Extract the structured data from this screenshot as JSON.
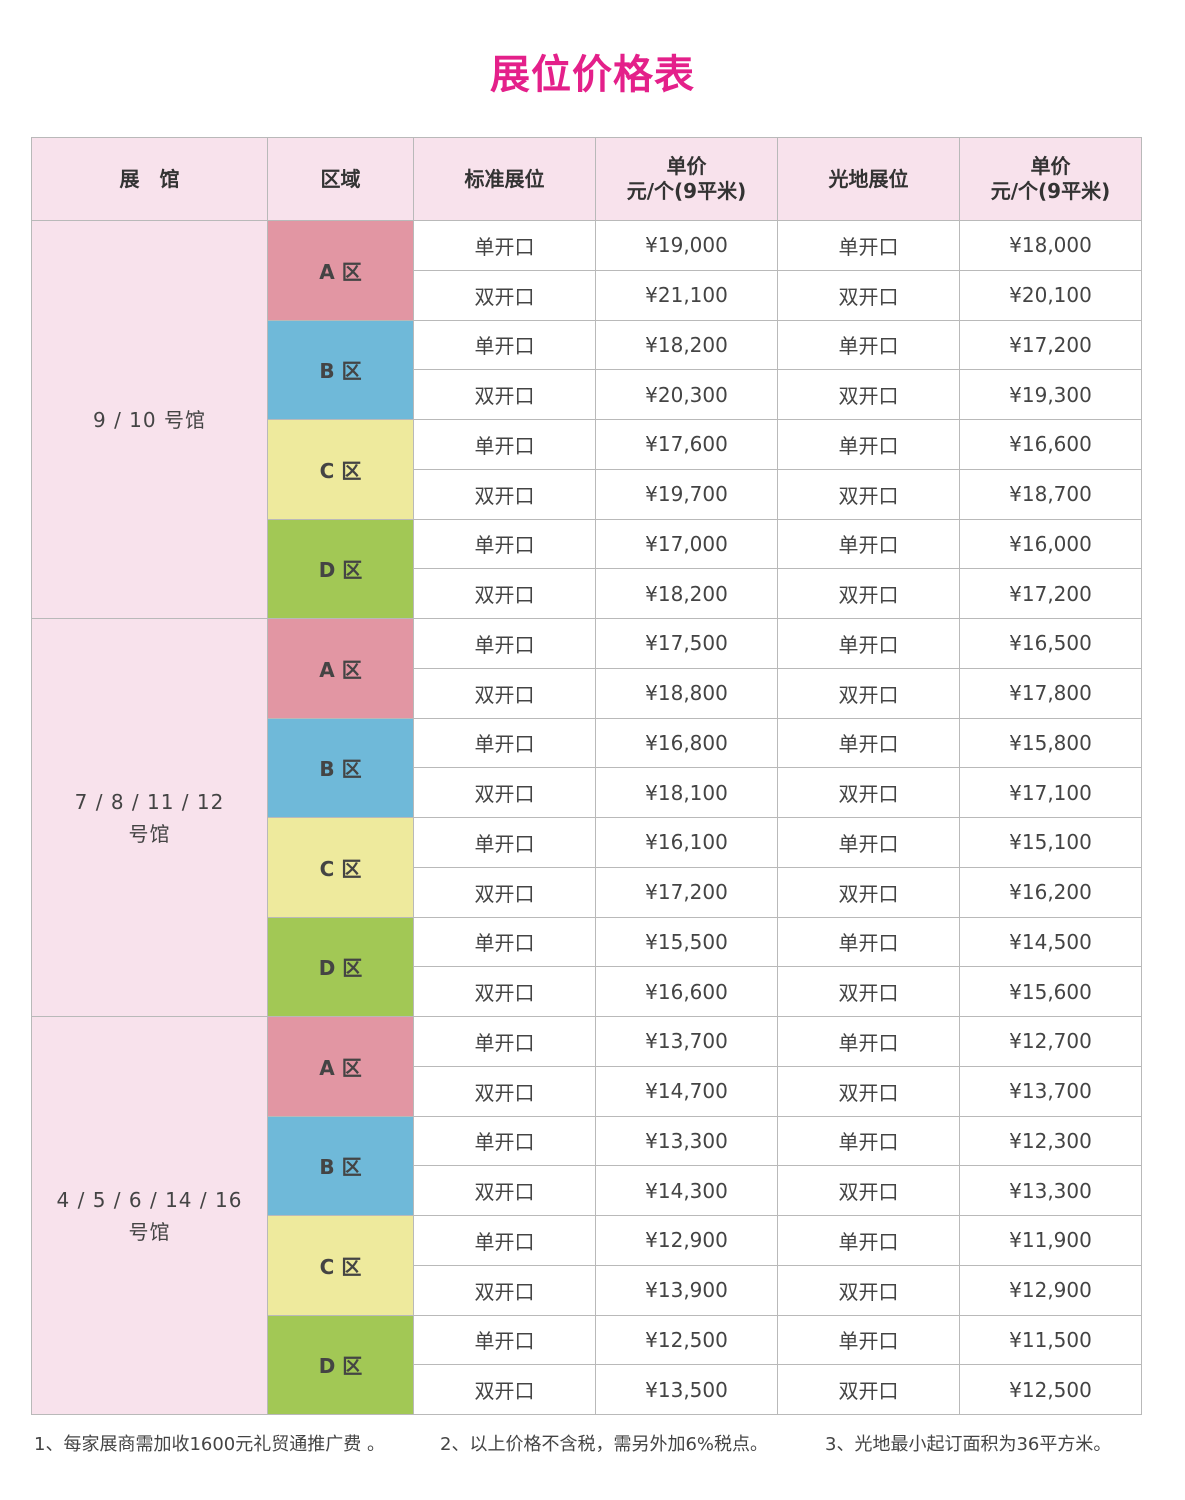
{
  "title": "展位价格表",
  "colors": {
    "title": "#e4208a",
    "header_bg": "#f8e2ec",
    "zone_a": "#e296a3",
    "zone_b": "#6fb9d9",
    "zone_c": "#eeea9d",
    "zone_d": "#a2c855"
  },
  "headers": [
    "展　馆",
    "区域",
    "标准展位",
    "单价\n元/个(9平米)",
    "光地展位",
    "单价\n元/个(9平米)"
  ],
  "halls": [
    {
      "name": "9 / 10  号馆",
      "zones": [
        {
          "label": "A 区",
          "rows": [
            {
              "std": "单开口",
              "std_price": "¥19,000",
              "raw": "单开口",
              "raw_price": "¥18,000"
            },
            {
              "std": "双开口",
              "std_price": "¥21,100",
              "raw": "双开口",
              "raw_price": "¥20,100"
            }
          ]
        },
        {
          "label": "B 区",
          "rows": [
            {
              "std": "单开口",
              "std_price": "¥18,200",
              "raw": "单开口",
              "raw_price": "¥17,200"
            },
            {
              "std": "双开口",
              "std_price": "¥20,300",
              "raw": "双开口",
              "raw_price": "¥19,300"
            }
          ]
        },
        {
          "label": "C 区",
          "rows": [
            {
              "std": "单开口",
              "std_price": "¥17,600",
              "raw": "单开口",
              "raw_price": "¥16,600"
            },
            {
              "std": "双开口",
              "std_price": "¥19,700",
              "raw": "双开口",
              "raw_price": "¥18,700"
            }
          ]
        },
        {
          "label": "D 区",
          "rows": [
            {
              "std": "单开口",
              "std_price": "¥17,000",
              "raw": "单开口",
              "raw_price": "¥16,000"
            },
            {
              "std": "双开口",
              "std_price": "¥18,200",
              "raw": "双开口",
              "raw_price": "¥17,200"
            }
          ]
        }
      ]
    },
    {
      "name": "7 / 8 / 11 / 12\n号馆",
      "zones": [
        {
          "label": "A 区",
          "rows": [
            {
              "std": "单开口",
              "std_price": "¥17,500",
              "raw": "单开口",
              "raw_price": "¥16,500"
            },
            {
              "std": "双开口",
              "std_price": "¥18,800",
              "raw": "双开口",
              "raw_price": "¥17,800"
            }
          ]
        },
        {
          "label": "B 区",
          "rows": [
            {
              "std": "单开口",
              "std_price": "¥16,800",
              "raw": "单开口",
              "raw_price": "¥15,800"
            },
            {
              "std": "双开口",
              "std_price": "¥18,100",
              "raw": "双开口",
              "raw_price": "¥17,100"
            }
          ]
        },
        {
          "label": "C 区",
          "rows": [
            {
              "std": "单开口",
              "std_price": "¥16,100",
              "raw": "单开口",
              "raw_price": "¥15,100"
            },
            {
              "std": "双开口",
              "std_price": "¥17,200",
              "raw": "双开口",
              "raw_price": "¥16,200"
            }
          ]
        },
        {
          "label": "D 区",
          "rows": [
            {
              "std": "单开口",
              "std_price": "¥15,500",
              "raw": "单开口",
              "raw_price": "¥14,500"
            },
            {
              "std": "双开口",
              "std_price": "¥16,600",
              "raw": "双开口",
              "raw_price": "¥15,600"
            }
          ]
        }
      ]
    },
    {
      "name": "4 / 5 / 6 / 14 / 16\n号馆",
      "zones": [
        {
          "label": "A 区",
          "rows": [
            {
              "std": "单开口",
              "std_price": "¥13,700",
              "raw": "单开口",
              "raw_price": "¥12,700"
            },
            {
              "std": "双开口",
              "std_price": "¥14,700",
              "raw": "双开口",
              "raw_price": "¥13,700"
            }
          ]
        },
        {
          "label": "B 区",
          "rows": [
            {
              "std": "单开口",
              "std_price": "¥13,300",
              "raw": "单开口",
              "raw_price": "¥12,300"
            },
            {
              "std": "双开口",
              "std_price": "¥14,300",
              "raw": "双开口",
              "raw_price": "¥13,300"
            }
          ]
        },
        {
          "label": "C 区",
          "rows": [
            {
              "std": "单开口",
              "std_price": "¥12,900",
              "raw": "单开口",
              "raw_price": "¥11,900"
            },
            {
              "std": "双开口",
              "std_price": "¥13,900",
              "raw": "双开口",
              "raw_price": "¥12,900"
            }
          ]
        },
        {
          "label": "D 区",
          "rows": [
            {
              "std": "单开口",
              "std_price": "¥12,500",
              "raw": "单开口",
              "raw_price": "¥11,500"
            },
            {
              "std": "双开口",
              "std_price": "¥13,500",
              "raw": "双开口",
              "raw_price": "¥12,500"
            }
          ]
        }
      ]
    }
  ],
  "notes": [
    "1、每家展商需加收1600元礼贸通推广费 。",
    "2、以上价格不含税，需另外加6%税点。",
    "3、光地最小起订面积为36平方米。"
  ]
}
